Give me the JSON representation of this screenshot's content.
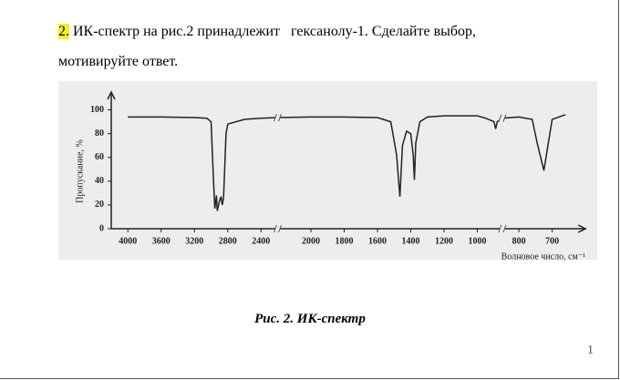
{
  "question": {
    "number": "2.",
    "line1": "ИК-спектр на рис.2 принадлежит   гексанолу-1. Сделайте выбор,",
    "line2": "мотивируйте ответ."
  },
  "chart_data": {
    "type": "line",
    "ylabel": "Пропускание, %",
    "xlabel": "Волновое число, см⁻¹",
    "xlim": [
      4200,
      600
    ],
    "x_breaks": [
      2200,
      850
    ],
    "xticks": [
      4000,
      3600,
      3200,
      2800,
      2400,
      2000,
      1800,
      1600,
      1400,
      1200,
      1000,
      800,
      700
    ],
    "ylim": [
      0,
      115
    ],
    "yticks": [
      0,
      20,
      40,
      60,
      80,
      100
    ],
    "x": [
      4000,
      3600,
      3200,
      3050,
      3000,
      2970,
      2955,
      2935,
      2925,
      2900,
      2880,
      2865,
      2850,
      2820,
      2800,
      2600,
      2400,
      2200,
      2000,
      1800,
      1600,
      1520,
      1485,
      1465,
      1450,
      1425,
      1400,
      1385,
      1378,
      1370,
      1345,
      1300,
      1200,
      1000,
      950,
      900,
      890,
      880,
      850,
      800,
      760,
      745,
      725,
      710,
      700,
      660
    ],
    "values": [
      94,
      94,
      93.5,
      93,
      90,
      40,
      17,
      28,
      15,
      23,
      27,
      20,
      26,
      80,
      88,
      92,
      93,
      93.5,
      94,
      94,
      93.5,
      90,
      62,
      27,
      70,
      82,
      80,
      62,
      41,
      72,
      90,
      94,
      95,
      95,
      93,
      90,
      84,
      90,
      93,
      94,
      92,
      72,
      49,
      75,
      92,
      96
    ],
    "color": "#222222"
  },
  "caption": "Рис. 2. ИК-спектр",
  "page_number": "1"
}
